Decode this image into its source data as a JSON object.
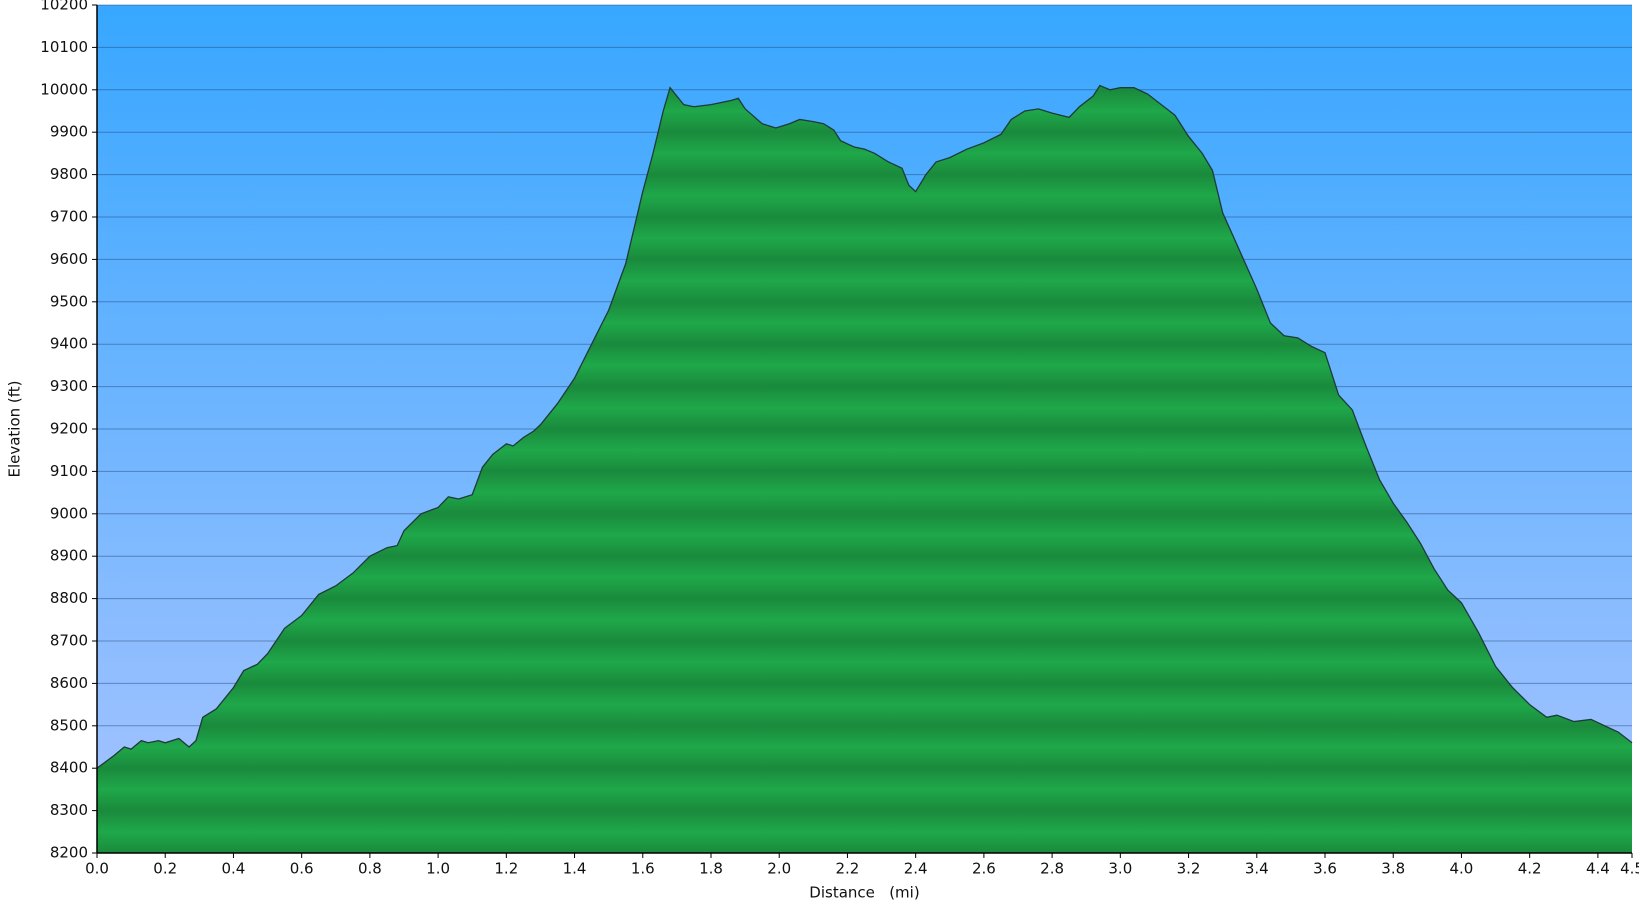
{
  "chart_data": {
    "type": "area",
    "xlabel": "Distance   (mi)",
    "ylabel": "Elevation (ft)",
    "x": [
      0.0,
      0.05,
      0.08,
      0.1,
      0.13,
      0.15,
      0.18,
      0.2,
      0.24,
      0.27,
      0.29,
      0.31,
      0.35,
      0.4,
      0.43,
      0.47,
      0.5,
      0.55,
      0.6,
      0.65,
      0.7,
      0.75,
      0.8,
      0.85,
      0.88,
      0.9,
      0.95,
      1.0,
      1.03,
      1.06,
      1.1,
      1.13,
      1.16,
      1.2,
      1.22,
      1.25,
      1.28,
      1.3,
      1.35,
      1.4,
      1.45,
      1.5,
      1.55,
      1.6,
      1.63,
      1.66,
      1.68,
      1.72,
      1.75,
      1.8,
      1.86,
      1.88,
      1.9,
      1.95,
      1.99,
      2.03,
      2.06,
      2.1,
      2.13,
      2.16,
      2.18,
      2.22,
      2.25,
      2.28,
      2.32,
      2.36,
      2.38,
      2.4,
      2.43,
      2.46,
      2.5,
      2.55,
      2.6,
      2.65,
      2.68,
      2.72,
      2.76,
      2.8,
      2.85,
      2.88,
      2.92,
      2.94,
      2.97,
      3.0,
      3.04,
      3.08,
      3.12,
      3.16,
      3.2,
      3.24,
      3.27,
      3.3,
      3.35,
      3.4,
      3.44,
      3.48,
      3.52,
      3.56,
      3.6,
      3.64,
      3.68,
      3.72,
      3.76,
      3.8,
      3.84,
      3.88,
      3.92,
      3.96,
      4.0,
      4.05,
      4.1,
      4.15,
      4.2,
      4.25,
      4.28,
      4.33,
      4.38,
      4.42,
      4.46,
      4.5
    ],
    "values": [
      8400,
      8430,
      8450,
      8445,
      8465,
      8460,
      8465,
      8460,
      8470,
      8450,
      8465,
      8520,
      8540,
      8590,
      8630,
      8645,
      8670,
      8730,
      8760,
      8810,
      8830,
      8860,
      8900,
      8920,
      8925,
      8960,
      9000,
      9015,
      9040,
      9035,
      9045,
      9110,
      9140,
      9165,
      9160,
      9180,
      9195,
      9210,
      9260,
      9320,
      9400,
      9480,
      9590,
      9760,
      9850,
      9950,
      10005,
      9965,
      9960,
      9965,
      9975,
      9980,
      9955,
      9920,
      9910,
      9920,
      9930,
      9925,
      9920,
      9905,
      9880,
      9865,
      9860,
      9850,
      9830,
      9815,
      9775,
      9760,
      9800,
      9830,
      9840,
      9860,
      9875,
      9895,
      9930,
      9950,
      9955,
      9945,
      9935,
      9960,
      9985,
      10010,
      10000,
      10005,
      10005,
      9990,
      9965,
      9940,
      9890,
      9850,
      9810,
      9710,
      9620,
      9530,
      9450,
      9420,
      9415,
      9395,
      9380,
      9280,
      9245,
      9160,
      9080,
      9025,
      8980,
      8930,
      8870,
      8820,
      8790,
      8720,
      8640,
      8590,
      8550,
      8520,
      8525,
      8510,
      8515,
      8500,
      8485,
      8460
    ],
    "color": "#1fa84a",
    "xlim": [
      0,
      4.5
    ],
    "xticks": [
      {
        "value": 0,
        "label": "0.0"
      },
      0.2,
      0.4,
      0.6,
      0.8,
      {
        "value": 1,
        "label": "1.0"
      },
      1.2,
      1.4,
      1.6,
      1.8,
      {
        "value": 2,
        "label": "2.0"
      },
      2.2,
      2.4,
      2.6,
      2.8,
      {
        "value": 3,
        "label": "3.0"
      },
      3.2,
      3.4,
      3.6,
      3.8,
      {
        "value": 4,
        "label": "4.0"
      },
      4.2,
      4.4,
      4.5
    ],
    "ylim": [
      8200,
      10200
    ],
    "yticks": [
      8200,
      8300,
      8400,
      8500,
      8600,
      8700,
      8800,
      8900,
      9000,
      9100,
      9200,
      9300,
      9400,
      9500,
      9600,
      9700,
      9800,
      9900,
      10000,
      10100,
      10200
    ],
    "grid": true
  }
}
